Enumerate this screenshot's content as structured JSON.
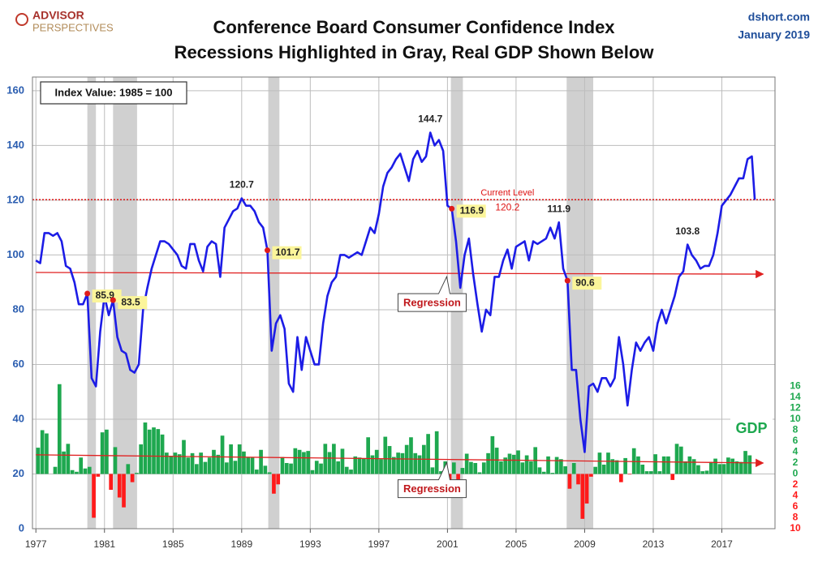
{
  "chart_data": {
    "type": "combo",
    "logo": [
      "ADVISOR",
      "PERSPECTIVES"
    ],
    "title": "Conference Board Consumer Confidence Index",
    "subtitle": "Recessions Highlighted in Gray, Real GDP Shown Below",
    "source": "dshort.com",
    "date": "January 2019",
    "note": "Index Value: 1985 = 100",
    "xlim": [
      1976.8,
      2020.1
    ],
    "xticks": [
      1977,
      1981,
      1985,
      1989,
      1993,
      1997,
      2001,
      2005,
      2009,
      2013,
      2017
    ],
    "ylim": [
      0,
      165
    ],
    "yticks": [
      0,
      20,
      40,
      60,
      80,
      100,
      120,
      140,
      160
    ],
    "y2lim": [
      -10,
      72.5
    ],
    "y2ticks": [
      {
        "value": -10,
        "label": "10"
      },
      {
        "value": -8,
        "label": "8"
      },
      {
        "value": -6,
        "label": "6"
      },
      {
        "value": -4,
        "label": "4"
      },
      {
        "value": -2,
        "label": "2"
      },
      0,
      2,
      4,
      6,
      8,
      10,
      12,
      14,
      16
    ],
    "grid": true,
    "recessions": [
      [
        1980.0,
        1980.5
      ],
      [
        1981.5,
        1982.9
      ],
      [
        1990.55,
        1991.2
      ],
      [
        2001.2,
        2001.9
      ],
      [
        2007.95,
        2009.5
      ]
    ],
    "series": [
      {
        "name": "GDP",
        "type": "bar",
        "axis": "y2",
        "color": "#1ea84f",
        "negative_color": "#ff1a1a",
        "x": [
          1977,
          1977.25,
          1977.5,
          1977.75,
          1978,
          1978.25,
          1978.5,
          1978.75,
          1979,
          1979.25,
          1979.5,
          1979.75,
          1980,
          1980.25,
          1980.5,
          1980.75,
          1981,
          1981.25,
          1981.5,
          1981.75,
          1982,
          1982.25,
          1982.5,
          1982.75,
          1983,
          1983.25,
          1983.5,
          1983.75,
          1984,
          1984.25,
          1984.5,
          1984.75,
          1985,
          1985.25,
          1985.5,
          1985.75,
          1986,
          1986.25,
          1986.5,
          1986.75,
          1987,
          1987.25,
          1987.5,
          1987.75,
          1988,
          1988.25,
          1988.5,
          1988.75,
          1989,
          1989.25,
          1989.5,
          1989.75,
          1990,
          1990.25,
          1990.5,
          1990.75,
          1991,
          1991.25,
          1991.5,
          1991.75,
          1992,
          1992.25,
          1992.5,
          1992.75,
          1993,
          1993.25,
          1993.5,
          1993.75,
          1994,
          1994.25,
          1994.5,
          1994.75,
          1995,
          1995.25,
          1995.5,
          1995.75,
          1996,
          1996.25,
          1996.5,
          1996.75,
          1997,
          1997.25,
          1997.5,
          1997.75,
          1998,
          1998.25,
          1998.5,
          1998.75,
          1999,
          1999.25,
          1999.5,
          1999.75,
          2000,
          2000.25,
          2000.5,
          2000.75,
          2001,
          2001.25,
          2001.5,
          2001.75,
          2002,
          2002.25,
          2002.5,
          2002.75,
          2003,
          2003.25,
          2003.5,
          2003.75,
          2004,
          2004.25,
          2004.5,
          2004.75,
          2005,
          2005.25,
          2005.5,
          2005.75,
          2006,
          2006.25,
          2006.5,
          2006.75,
          2007,
          2007.25,
          2007.5,
          2007.75,
          2008,
          2008.25,
          2008.5,
          2008.75,
          2009,
          2009.25,
          2009.5,
          2009.75,
          2010,
          2010.25,
          2010.5,
          2010.75,
          2011,
          2011.25,
          2011.5,
          2011.75,
          2012,
          2012.25,
          2012.5,
          2012.75,
          2013,
          2013.25,
          2013.5,
          2013.75,
          2014,
          2014.25,
          2014.5,
          2014.75,
          2015,
          2015.25,
          2015.5,
          2015.75,
          2016,
          2016.25,
          2016.5,
          2016.75,
          2017,
          2017.25,
          2017.5,
          2017.75,
          2018,
          2018.25,
          2018.5
        ],
        "values": [
          4.8,
          8.0,
          7.4,
          0.0,
          1.3,
          16.4,
          4.1,
          5.5,
          0.7,
          0.4,
          3.0,
          1.0,
          1.3,
          -8.0,
          -0.5,
          7.6,
          8.1,
          -2.9,
          4.9,
          -4.3,
          -6.1,
          1.8,
          -1.5,
          0.2,
          5.4,
          9.4,
          8.1,
          8.5,
          8.2,
          7.2,
          3.9,
          3.3,
          3.9,
          3.6,
          6.2,
          3.0,
          3.8,
          1.8,
          3.9,
          2.2,
          3.0,
          4.4,
          3.5,
          7.0,
          2.1,
          5.4,
          2.4,
          5.4,
          4.1,
          3.1,
          3.0,
          0.8,
          4.4,
          1.5,
          0.3,
          -3.6,
          -1.9,
          3.1,
          2.0,
          1.9,
          4.7,
          4.4,
          4.0,
          4.2,
          0.7,
          2.4,
          1.9,
          5.5,
          4.0,
          5.5,
          2.3,
          4.6,
          1.3,
          0.8,
          3.2,
          3.0,
          2.9,
          6.7,
          3.4,
          4.4,
          2.7,
          6.8,
          5.1,
          3.1,
          3.9,
          3.8,
          5.3,
          6.7,
          3.8,
          3.4,
          5.3,
          7.3,
          1.2,
          7.8,
          0.5,
          2.3,
          -1.1,
          2.1,
          -1.3,
          1.1,
          3.7,
          2.2,
          2.0,
          0.3,
          2.1,
          3.8,
          6.9,
          4.8,
          2.3,
          3.0,
          3.7,
          3.5,
          4.3,
          2.1,
          3.4,
          2.3,
          4.9,
          1.2,
          0.4,
          3.2,
          0.2,
          3.1,
          2.7,
          1.4,
          -2.7,
          2.0,
          -1.9,
          -8.2,
          -5.4,
          -0.5,
          1.3,
          3.9,
          1.7,
          3.9,
          2.7,
          2.5,
          -1.5,
          2.9,
          -0.1,
          4.7,
          3.2,
          1.7,
          0.5,
          0.5,
          3.6,
          0.5,
          3.2,
          3.2,
          -1.1,
          5.5,
          5.0,
          2.3,
          3.2,
          2.7,
          1.6,
          0.5,
          0.6,
          2.2,
          2.8,
          1.8,
          1.8,
          3.0,
          2.8,
          2.3,
          2.2,
          4.2,
          3.4
        ]
      },
      {
        "type": "line",
        "axis": "y",
        "color": "#1c1ce6",
        "x": [
          1977,
          1977.25,
          1977.5,
          1977.75,
          1978,
          1978.25,
          1978.5,
          1978.75,
          1979,
          1979.25,
          1979.5,
          1979.75,
          1980,
          1980.25,
          1980.5,
          1980.75,
          1981,
          1981.25,
          1981.5,
          1981.75,
          1982,
          1982.25,
          1982.5,
          1982.75,
          1983,
          1983.25,
          1983.5,
          1983.75,
          1984,
          1984.25,
          1984.5,
          1984.75,
          1985,
          1985.25,
          1985.5,
          1985.75,
          1986,
          1986.25,
          1986.5,
          1986.75,
          1987,
          1987.25,
          1987.5,
          1987.75,
          1988,
          1988.25,
          1988.5,
          1988.75,
          1989,
          1989.25,
          1989.5,
          1989.75,
          1990,
          1990.25,
          1990.5,
          1990.75,
          1991,
          1991.25,
          1991.5,
          1991.75,
          1992,
          1992.25,
          1992.5,
          1992.75,
          1993,
          1993.25,
          1993.5,
          1993.75,
          1994,
          1994.25,
          1994.5,
          1994.75,
          1995,
          1995.25,
          1995.5,
          1995.75,
          1996,
          1996.25,
          1996.5,
          1996.75,
          1997,
          1997.25,
          1997.5,
          1997.75,
          1998,
          1998.25,
          1998.5,
          1998.75,
          1999,
          1999.25,
          1999.5,
          1999.75,
          2000,
          2000.25,
          2000.5,
          2000.75,
          2001,
          2001.25,
          2001.5,
          2001.75,
          2002,
          2002.25,
          2002.5,
          2002.75,
          2003,
          2003.25,
          2003.5,
          2003.75,
          2004,
          2004.25,
          2004.5,
          2004.75,
          2005,
          2005.25,
          2005.5,
          2005.75,
          2006,
          2006.25,
          2006.5,
          2006.75,
          2007,
          2007.25,
          2007.5,
          2007.75,
          2008,
          2008.25,
          2008.5,
          2008.75,
          2009,
          2009.25,
          2009.5,
          2009.75,
          2010,
          2010.25,
          2010.5,
          2010.75,
          2011,
          2011.25,
          2011.5,
          2011.75,
          2012,
          2012.25,
          2012.5,
          2012.75,
          2013,
          2013.25,
          2013.5,
          2013.75,
          2014,
          2014.25,
          2014.5,
          2014.75,
          2015,
          2015.25,
          2015.5,
          2015.75,
          2016,
          2016.25,
          2016.5,
          2016.75,
          2017,
          2017.25,
          2017.5,
          2017.75,
          2018,
          2018.25,
          2018.5,
          2018.75,
          2018.92
        ],
        "values": [
          98,
          97,
          108,
          108,
          107,
          108,
          105,
          96,
          95,
          90,
          82,
          82,
          85.9,
          55,
          52,
          72,
          85,
          78,
          83.5,
          70,
          65,
          64,
          58,
          57,
          60,
          80,
          88,
          95,
          100,
          105,
          105,
          104,
          102,
          100,
          96,
          95,
          104,
          104,
          98,
          94,
          103,
          105,
          104,
          92,
          110,
          113,
          116,
          117,
          120.7,
          118,
          118,
          116,
          112,
          110,
          101.7,
          65,
          75,
          78,
          73,
          53,
          50,
          70,
          58,
          70,
          65,
          60,
          60,
          75,
          85,
          90,
          92,
          100,
          100,
          99,
          100,
          101,
          100,
          105,
          110,
          108,
          115,
          125,
          130,
          132,
          135,
          137,
          132,
          127,
          135,
          138,
          134,
          136,
          144.7,
          140,
          142,
          138,
          118,
          116.9,
          105,
          88,
          100,
          106,
          93,
          82,
          72,
          80,
          78,
          92,
          92,
          98,
          102,
          95,
          103,
          104,
          105,
          98,
          105,
          104,
          105,
          106,
          110,
          106,
          111.9,
          95,
          90.6,
          58,
          58,
          40,
          28,
          52,
          53,
          50,
          55,
          55,
          52,
          55,
          70,
          60,
          45,
          58,
          68,
          65,
          68,
          70,
          65,
          75,
          80,
          75,
          80,
          85,
          92,
          94,
          103.8,
          100,
          98,
          95,
          96,
          96,
          100,
          108,
          118,
          120,
          122,
          125,
          128,
          128,
          135,
          136,
          120.2
        ]
      }
    ],
    "annotations": [
      {
        "x": 1980.0,
        "value": 85.9,
        "dot": true,
        "highlight": true,
        "position": "right"
      },
      {
        "x": 1981.5,
        "value": 83.5,
        "dot": true,
        "highlight": true,
        "position": "right"
      },
      {
        "x": 1989.0,
        "value": 120.7,
        "dot": false,
        "highlight": false,
        "position": "above"
      },
      {
        "x": 1990.5,
        "value": 101.7,
        "dot": true,
        "highlight": true,
        "position": "right"
      },
      {
        "x": 2000.0,
        "value": 144.7,
        "dot": false,
        "highlight": false,
        "position": "above"
      },
      {
        "x": 2001.25,
        "value": 116.9,
        "dot": true,
        "highlight": true,
        "position": "right"
      },
      {
        "x": 2007.5,
        "value": 111.9,
        "dot": false,
        "highlight": false,
        "position": "above"
      },
      {
        "x": 2008.0,
        "value": 90.6,
        "dot": true,
        "highlight": true,
        "position": "right"
      },
      {
        "x": 2015.0,
        "value": 103.8,
        "dot": false,
        "highlight": false,
        "position": "above"
      }
    ],
    "current_level": {
      "label": "Current Level",
      "value": 120.2,
      "color": "#dd1111"
    },
    "regressions": [
      {
        "label": "Regression",
        "axis": "y",
        "start": [
          1977,
          93.6
        ],
        "end": [
          2019.4,
          93.0
        ],
        "color": "#e02020"
      },
      {
        "label": "Regression",
        "axis": "y2",
        "start": [
          1977,
          3.5
        ],
        "end": [
          2019.4,
          2.0
        ],
        "color": "#e02020"
      }
    ]
  }
}
